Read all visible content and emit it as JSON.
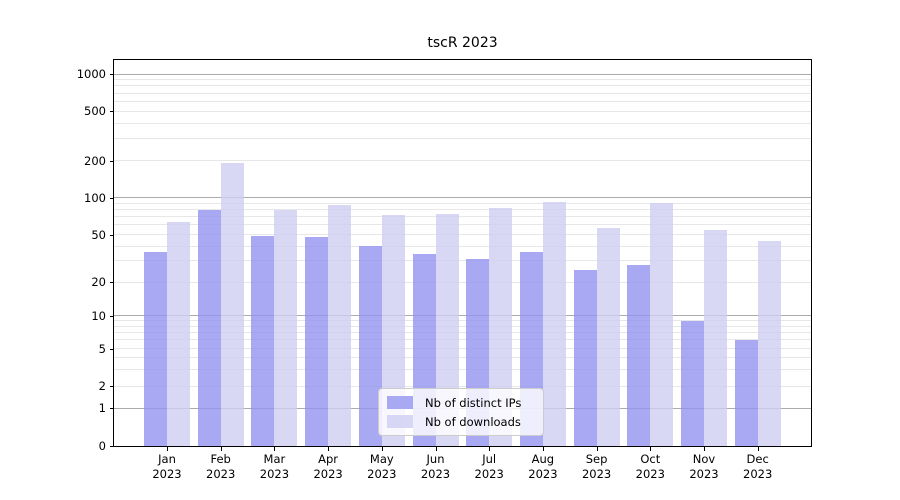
{
  "title": "tscR 2023",
  "chart_data": {
    "type": "bar",
    "title": "tscR 2023",
    "categories": [
      "Jan 2023",
      "Feb 2023",
      "Mar 2023",
      "Apr 2023",
      "May 2023",
      "Jun 2023",
      "Jul 2023",
      "Aug 2023",
      "Sep 2023",
      "Oct 2023",
      "Nov 2023",
      "Dec 2023"
    ],
    "series": [
      {
        "name": "Nb of distinct IPs",
        "color": "rgba(148,148,240,0.8)",
        "solid_color": "#a9a9f3",
        "values": [
          36,
          79,
          49,
          48,
          40,
          34,
          31,
          36,
          25,
          28,
          9,
          6
        ]
      },
      {
        "name": "Nb of downloads",
        "color": "rgba(206,206,242,0.8)",
        "solid_color": "#d8d8f4",
        "values": [
          63,
          190,
          79,
          87,
          72,
          73,
          82,
          92,
          57,
          90,
          54,
          44
        ]
      }
    ],
    "xlabel": "",
    "ylabel": "",
    "y_axis": {
      "type": "log-like",
      "tick_labels": [
        "1000",
        "500",
        "200",
        "100",
        "50",
        "20",
        "10",
        "5",
        "2",
        "1",
        "0"
      ],
      "tick_values": [
        1000,
        500,
        200,
        100,
        50,
        20,
        10,
        5,
        2,
        1,
        0
      ],
      "range_top": 1000,
      "range_bottom": 0
    },
    "grid": true,
    "legend": {
      "position": "bottom-center",
      "entries": [
        "Nb of distinct IPs",
        "Nb of downloads"
      ]
    }
  }
}
